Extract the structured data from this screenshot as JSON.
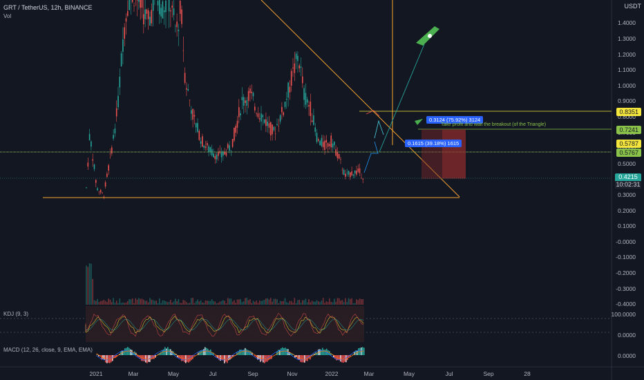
{
  "header": {
    "title": "GRT / TetherUS, 12h, BINANCE",
    "vol_label": "Vol",
    "currency": "USDT"
  },
  "indicators": {
    "kdj": "KDJ (9, 3)",
    "macd": "MACD (12, 26, close, 9, EMA, EMA)"
  },
  "price_axis": {
    "labels": [
      "1.4000",
      "1.3000",
      "1.2000",
      "1.1000",
      "1.0000",
      "0.9000",
      "0.8000",
      "0.7000",
      "0.6000",
      "0.5000",
      "0.4000",
      "0.3000",
      "0.2000",
      "0.1000",
      "-0.0000",
      "-0.1000",
      "-0.2000",
      "-0.3000",
      "-0.4000"
    ],
    "values": [
      1.4,
      1.3,
      1.2,
      1.1,
      1.0,
      0.9,
      0.8,
      0.7,
      0.6,
      0.5,
      0.4,
      0.3,
      0.2,
      0.1,
      0.0,
      -0.1,
      -0.2,
      -0.3,
      -0.4
    ]
  },
  "kdj_axis": {
    "labels": [
      "100.0000",
      "0.0000"
    ]
  },
  "macd_axis": {
    "labels": [
      "0.0000"
    ]
  },
  "time_axis": {
    "labels": [
      "2021",
      "Mar",
      "May",
      "Jul",
      "Sep",
      "Nov",
      "2022",
      "Mar",
      "May",
      "Jul",
      "Sep",
      "28"
    ]
  },
  "price_badges": [
    {
      "label": "0.8351",
      "color": "#f5e63d"
    },
    {
      "label": "0.7241",
      "color": "#8bc34a"
    },
    {
      "label": "0.5787",
      "color": "#f5e63d"
    },
    {
      "label": "0.5767",
      "color": "#8bc34a"
    }
  ],
  "current_price": {
    "price": "0.4215",
    "countdown": "10:02:31"
  },
  "measurements": {
    "upper": "0.3124 (75.92%) 3124",
    "lower": "0.1615 (39.18%) 1615"
  },
  "annotation": "Take profit and wait the breakout (of the Triangle)",
  "colors": {
    "background": "#131722",
    "up": "#26a69a",
    "down": "#ef5350",
    "trendline": "#f7a531",
    "measure": "#2962ff"
  }
}
